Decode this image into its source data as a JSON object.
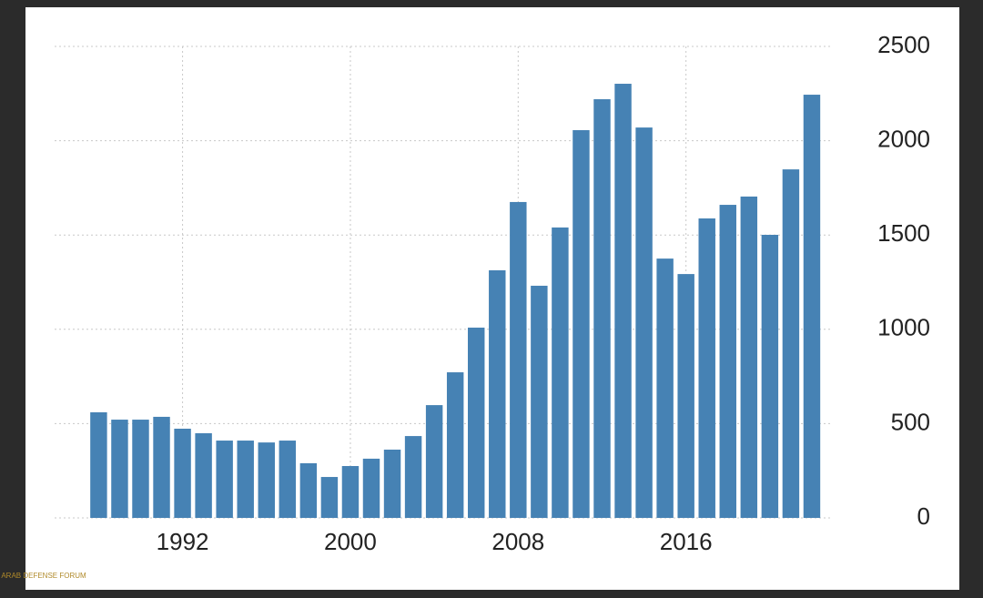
{
  "chart_data": {
    "type": "bar",
    "x": [
      1988,
      1989,
      1990,
      1991,
      1992,
      1993,
      1994,
      1995,
      1996,
      1997,
      1998,
      1999,
      2000,
      2001,
      2002,
      2003,
      2004,
      2005,
      2006,
      2007,
      2008,
      2009,
      2010,
      2011,
      2012,
      2013,
      2014,
      2015,
      2016,
      2017,
      2018,
      2019,
      2020,
      2021,
      2022
    ],
    "values": [
      560,
      521,
      521,
      536,
      473,
      449,
      410,
      410,
      400,
      410,
      290,
      217,
      275,
      314,
      362,
      434,
      598,
      772,
      1009,
      1313,
      1675,
      1231,
      1540,
      2056,
      2220,
      2302,
      2070,
      1375,
      1293,
      1588,
      1660,
      1704,
      1501,
      1848,
      2244
    ],
    "color": "#4682b4",
    "xlim": [
      1985.9,
      2023.0
    ],
    "xticks": [
      1992,
      2000,
      2008,
      2016
    ],
    "ylim": [
      0,
      2500
    ],
    "yticks": [
      0,
      500,
      1000,
      1500,
      2000,
      2500
    ],
    "grid": true
  },
  "watermark": "ARAB DEFENSE FORUM"
}
